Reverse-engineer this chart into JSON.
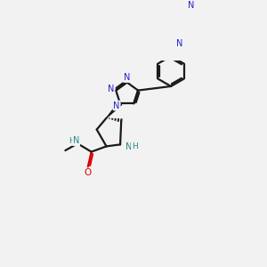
{
  "bg_color": "#f2f2f2",
  "bond_color": "#1a1a1a",
  "n_color": "#2222cc",
  "o_color": "#dd0000",
  "nh_color": "#2a8888",
  "lw": 1.6,
  "fs": 7.0,
  "figsize": [
    3.0,
    3.0
  ],
  "dpi": 100,
  "xlim": [
    0,
    300
  ],
  "ylim": [
    0,
    300
  ]
}
